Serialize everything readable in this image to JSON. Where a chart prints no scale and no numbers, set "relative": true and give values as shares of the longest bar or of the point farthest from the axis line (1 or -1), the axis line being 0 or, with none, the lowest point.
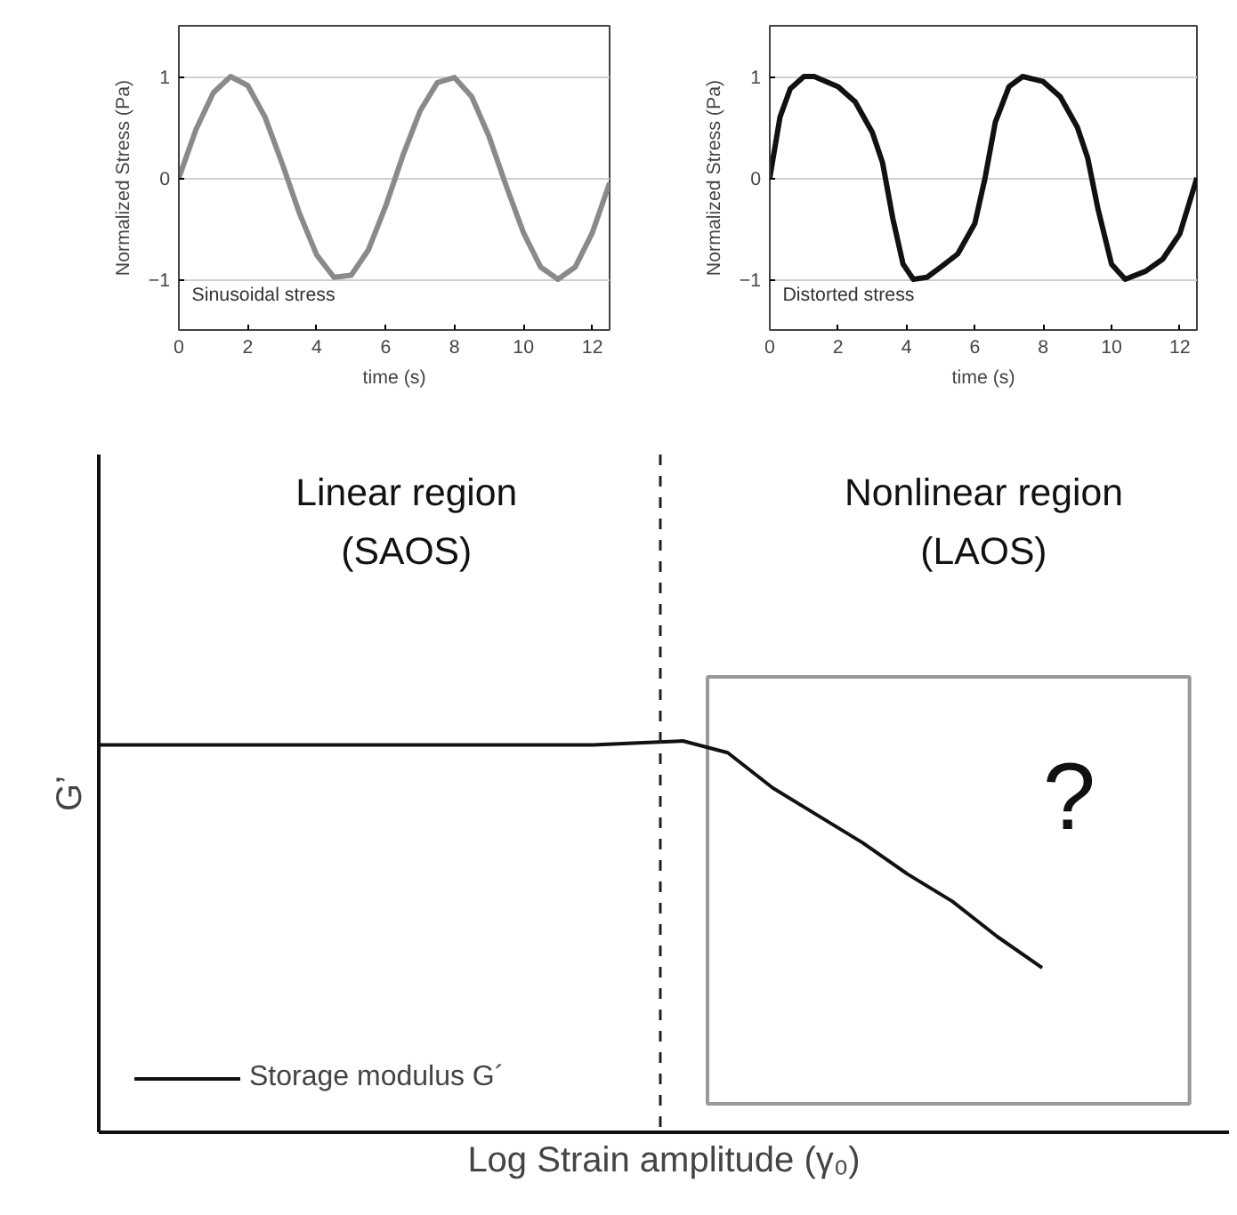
{
  "chart_data": [
    {
      "type": "line",
      "xlabel": "time (s)",
      "ylabel": "Normalized Stress (Pa)",
      "annotations": [
        "Sinusoidal stress"
      ],
      "x": [
        0,
        0.5,
        1,
        1.5,
        2,
        2.5,
        3,
        3.5,
        4,
        4.5,
        5,
        5.5,
        6,
        6.5,
        7,
        7.5,
        8,
        8.5,
        9,
        9.5,
        10,
        10.5,
        11,
        11.5,
        12,
        12.5
      ],
      "series": [
        {
          "color": "#8a8a8a",
          "values": [
            0,
            0.48,
            0.84,
            1.0,
            0.91,
            0.6,
            0.14,
            -0.35,
            -0.76,
            -0.98,
            -0.96,
            -0.71,
            -0.28,
            0.22,
            0.66,
            0.94,
            0.99,
            0.8,
            0.41,
            -0.08,
            -0.54,
            -0.88,
            -1.0,
            -0.88,
            -0.54,
            -0.05
          ]
        }
      ],
      "xlim": [
        0,
        12.5
      ],
      "ylim": [
        -1.5,
        1.5
      ],
      "xticks": [
        0,
        2,
        4,
        6,
        8,
        10,
        12
      ],
      "yticks": [
        -1,
        0,
        1
      ],
      "grid": "y",
      "legend": false
    },
    {
      "type": "line",
      "xlabel": "time (s)",
      "ylabel": "Normalized Stress (Pa)",
      "annotations": [
        "Distorted stress"
      ],
      "x": [
        0,
        0.3,
        0.6,
        1.0,
        1.3,
        2,
        2.5,
        3,
        3.3,
        3.6,
        3.9,
        4.2,
        4.6,
        5,
        5.5,
        6,
        6.3,
        6.6,
        7,
        7.4,
        8,
        8.5,
        9,
        9.3,
        9.6,
        10,
        10.4,
        11,
        11.5,
        12,
        12.5
      ],
      "series": [
        {
          "color": "#111111",
          "values": [
            0,
            0.6,
            0.88,
            1.0,
            1.0,
            0.9,
            0.75,
            0.45,
            0.15,
            -0.4,
            -0.85,
            -1.0,
            -0.98,
            -0.88,
            -0.75,
            -0.45,
            0,
            0.55,
            0.9,
            1.0,
            0.95,
            0.8,
            0.5,
            0.2,
            -0.3,
            -0.85,
            -1.0,
            -0.92,
            -0.8,
            -0.55,
            0
          ]
        }
      ],
      "xlim": [
        0,
        12.5
      ],
      "ylim": [
        -1.5,
        1.5
      ],
      "xticks": [
        0,
        2,
        4,
        6,
        8,
        10,
        12
      ],
      "yticks": [
        -1,
        0,
        1
      ],
      "grid": "y",
      "legend": false
    },
    {
      "type": "line",
      "relative": true,
      "xlabel": "Log Strain amplitude (γ₀)",
      "ylabel": "G’",
      "legend": "bottom left",
      "grid": false,
      "annotations": [
        "Linear region\n(SAOS)",
        "Nonlinear region\n(LAOS)",
        "?"
      ],
      "categories": [
        null,
        null,
        null,
        null,
        null,
        null,
        null,
        null,
        null,
        null,
        null,
        null,
        null,
        null,
        null,
        null,
        null,
        null,
        null,
        null,
        null,
        null
      ],
      "series": [
        {
          "name": "Storage modulus G´",
          "color": "#111111",
          "values": [
            0.99,
            0.99,
            0.99,
            0.99,
            0.99,
            0.99,
            0.99,
            0.99,
            0.99,
            0.99,
            0.99,
            0.99,
            0.995,
            1.0,
            0.97,
            0.88,
            0.81,
            0.74,
            0.66,
            0.59,
            0.5,
            0.42
          ]
        }
      ]
    }
  ]
}
